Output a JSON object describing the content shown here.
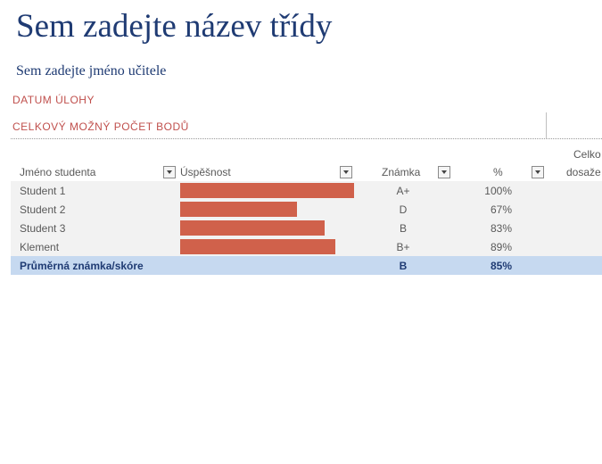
{
  "title": "Sem zadejte název třídy",
  "teacher": "Sem zadejte jméno učitele",
  "assignment_date_label": "DATUM ÚLOHY",
  "total_points_label": "CELKOVÝ MOŽNÝ POČET BODŮ",
  "columns": {
    "name": "Jméno studenta",
    "performance": "Úspěšnost",
    "grade": "Známka",
    "percent": "%",
    "total_line1": "Celko",
    "total_line2": "dosaže"
  },
  "students": [
    {
      "name": "Student 1",
      "grade": "A+",
      "percent": "100%",
      "performance": 1.0
    },
    {
      "name": "Student 2",
      "grade": "D",
      "percent": "67%",
      "performance": 0.67
    },
    {
      "name": "Student 3",
      "grade": "B",
      "percent": "83%",
      "performance": 0.83
    },
    {
      "name": "Klement",
      "grade": "B+",
      "percent": "89%",
      "performance": 0.89
    }
  ],
  "average": {
    "label": "Průměrná známka/skóre",
    "grade": "B",
    "percent": "85%"
  },
  "colors": {
    "bar": "#d0614b",
    "title": "#1f3b73",
    "accent_text": "#c0504d",
    "row_bg": "#f2f2f2",
    "total_row_bg": "#c6d9f0"
  },
  "icons": {
    "filter_dropdown": "chevron-down-icon"
  }
}
